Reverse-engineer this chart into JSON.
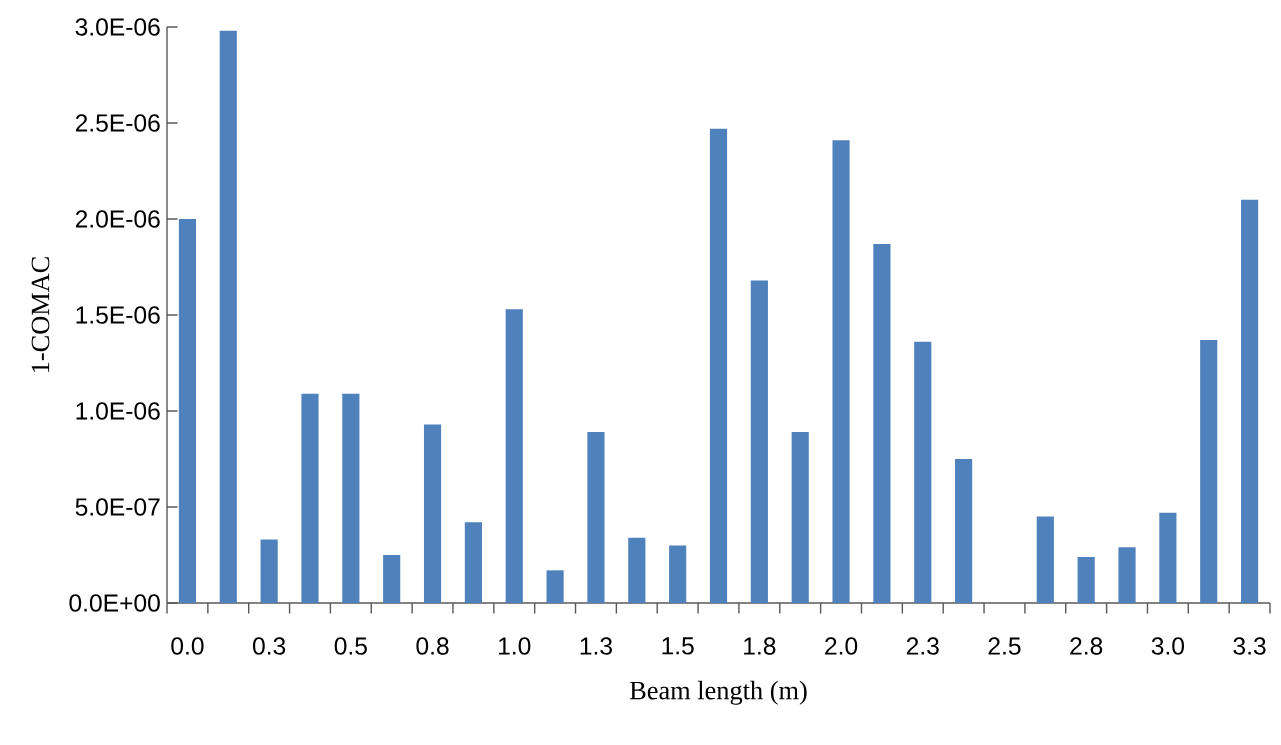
{
  "chart_data": {
    "type": "bar",
    "xlabel": "Beam length (m)",
    "ylabel": "1-COMAC",
    "categories": [
      "0.0",
      null,
      "0.3",
      null,
      "0.5",
      null,
      "0.8",
      null,
      "1.0",
      null,
      "1.3",
      null,
      "1.5",
      null,
      "1.8",
      null,
      "2.0",
      null,
      "2.3",
      null,
      "2.5",
      null,
      "2.8",
      null,
      "3.0",
      null,
      "3.3"
    ],
    "values": [
      2e-06,
      2.98e-06,
      3.3e-07,
      1.09e-06,
      1.09e-06,
      2.5e-07,
      9.3e-07,
      4.2e-07,
      1.53e-06,
      1.7e-07,
      8.9e-07,
      3.4e-07,
      3e-07,
      2.47e-06,
      1.68e-06,
      8.9e-07,
      2.41e-06,
      1.87e-06,
      1.36e-06,
      7.5e-07,
      0,
      4.5e-07,
      2.4e-07,
      2.9e-07,
      4.7e-07,
      1.37e-06,
      2.1e-06
    ],
    "color": "#4f81bd",
    "ylim": [
      0,
      3e-06
    ],
    "yticks": [
      {
        "value": 0,
        "label": "0.0E+00"
      },
      {
        "value": 5e-07,
        "label": "5.0E-07"
      },
      {
        "value": 1e-06,
        "label": "1.0E-06"
      },
      {
        "value": 1.5e-06,
        "label": "1.5E-06"
      },
      {
        "value": 2e-06,
        "label": "2.0E-06"
      },
      {
        "value": 2.5e-06,
        "label": "2.5E-06"
      },
      {
        "value": 3e-06,
        "label": "3.0E-06"
      }
    ],
    "grid": false
  }
}
